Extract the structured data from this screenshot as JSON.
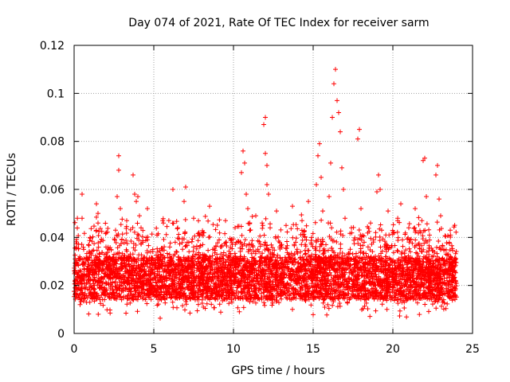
{
  "chart_data": {
    "type": "scatter",
    "title": "Day 074 of 2021, Rate Of TEC Index for receiver sarm",
    "xlabel": "GPS time / hours",
    "ylabel": "ROTI / TECUs",
    "xlim": [
      0,
      25
    ],
    "ylim": [
      0,
      0.12
    ],
    "xticks": [
      0,
      5,
      10,
      15,
      20,
      25
    ],
    "xtick_labels": [
      "0",
      "5",
      "10",
      "15",
      "20",
      "25"
    ],
    "yticks": [
      0,
      0.02,
      0.04,
      0.06,
      0.08,
      0.1,
      0.12
    ],
    "ytick_labels": [
      "0",
      "0.02",
      "0.04",
      "0.06",
      "0.08",
      "0.1",
      "0.12"
    ],
    "grid": true,
    "marker": "+",
    "color": "#ff0000",
    "series": [
      {
        "name": "ROTI",
        "points": [
          [
            0.1,
            0.022
          ],
          [
            0.3,
            0.031
          ],
          [
            0.4,
            0.018
          ],
          [
            0.5,
            0.058
          ],
          [
            0.5,
            0.048
          ],
          [
            0.6,
            0.035
          ],
          [
            0.8,
            0.027
          ],
          [
            1.0,
            0.04
          ],
          [
            1.1,
            0.019
          ],
          [
            1.3,
            0.025
          ],
          [
            1.4,
            0.054
          ],
          [
            1.5,
            0.05
          ],
          [
            1.5,
            0.046
          ],
          [
            1.6,
            0.033
          ],
          [
            1.8,
            0.021
          ],
          [
            2.0,
            0.036
          ],
          [
            2.2,
            0.028
          ],
          [
            2.4,
            0.017
          ],
          [
            2.6,
            0.043
          ],
          [
            2.7,
            0.057
          ],
          [
            2.8,
            0.074
          ],
          [
            2.8,
            0.068
          ],
          [
            2.9,
            0.052
          ],
          [
            3.0,
            0.039
          ],
          [
            3.1,
            0.024
          ],
          [
            3.3,
            0.047
          ],
          [
            3.5,
            0.031
          ],
          [
            3.7,
            0.066
          ],
          [
            3.8,
            0.058
          ],
          [
            3.9,
            0.055
          ],
          [
            4.0,
            0.057
          ],
          [
            4.1,
            0.049
          ],
          [
            4.2,
            0.044
          ],
          [
            4.3,
            0.038
          ],
          [
            4.5,
            0.026
          ],
          [
            4.6,
            0.052
          ],
          [
            4.8,
            0.034
          ],
          [
            5.0,
            0.019
          ],
          [
            5.2,
            0.041
          ],
          [
            5.4,
            0.029
          ],
          [
            5.6,
            0.046
          ],
          [
            5.8,
            0.022
          ],
          [
            6.0,
            0.036
          ],
          [
            6.2,
            0.06
          ],
          [
            6.3,
            0.027
          ],
          [
            6.5,
            0.044
          ],
          [
            6.7,
            0.031
          ],
          [
            6.9,
            0.055
          ],
          [
            7.0,
            0.061
          ],
          [
            7.1,
            0.038
          ],
          [
            7.3,
            0.024
          ],
          [
            7.5,
            0.048
          ],
          [
            7.7,
            0.033
          ],
          [
            7.9,
            0.02
          ],
          [
            8.1,
            0.042
          ],
          [
            8.3,
            0.028
          ],
          [
            8.5,
            0.053
          ],
          [
            8.7,
            0.035
          ],
          [
            8.9,
            0.017
          ],
          [
            9.1,
            0.039
          ],
          [
            9.3,
            0.026
          ],
          [
            9.5,
            0.047
          ],
          [
            9.7,
            0.032
          ],
          [
            9.9,
            0.021
          ],
          [
            10.1,
            0.044
          ],
          [
            10.3,
            0.03
          ],
          [
            10.5,
            0.067
          ],
          [
            10.6,
            0.076
          ],
          [
            10.7,
            0.071
          ],
          [
            10.8,
            0.058
          ],
          [
            10.9,
            0.052
          ],
          [
            11.0,
            0.037
          ],
          [
            11.2,
            0.025
          ],
          [
            11.4,
            0.049
          ],
          [
            11.6,
            0.034
          ],
          [
            11.8,
            0.046
          ],
          [
            11.9,
            0.087
          ],
          [
            12.0,
            0.09
          ],
          [
            12.0,
            0.075
          ],
          [
            12.1,
            0.07
          ],
          [
            12.1,
            0.062
          ],
          [
            12.2,
            0.058
          ],
          [
            12.3,
            0.044
          ],
          [
            12.5,
            0.029
          ],
          [
            12.7,
            0.051
          ],
          [
            12.9,
            0.036
          ],
          [
            13.1,
            0.023
          ],
          [
            13.3,
            0.045
          ],
          [
            13.5,
            0.031
          ],
          [
            13.7,
            0.053
          ],
          [
            13.9,
            0.038
          ],
          [
            14.1,
            0.022
          ],
          [
            14.3,
            0.047
          ],
          [
            14.5,
            0.033
          ],
          [
            14.7,
            0.055
          ],
          [
            14.9,
            0.04
          ],
          [
            15.0,
            0.026
          ],
          [
            15.2,
            0.062
          ],
          [
            15.3,
            0.074
          ],
          [
            15.4,
            0.079
          ],
          [
            15.5,
            0.065
          ],
          [
            15.6,
            0.051
          ],
          [
            15.8,
            0.037
          ],
          [
            16.0,
            0.057
          ],
          [
            16.1,
            0.071
          ],
          [
            16.2,
            0.09
          ],
          [
            16.3,
            0.104
          ],
          [
            16.4,
            0.11
          ],
          [
            16.5,
            0.097
          ],
          [
            16.6,
            0.092
          ],
          [
            16.7,
            0.084
          ],
          [
            16.8,
            0.069
          ],
          [
            16.9,
            0.06
          ],
          [
            17.0,
            0.048
          ],
          [
            17.2,
            0.033
          ],
          [
            17.4,
            0.044
          ],
          [
            17.6,
            0.029
          ],
          [
            17.8,
            0.081
          ],
          [
            17.9,
            0.085
          ],
          [
            18.0,
            0.052
          ],
          [
            18.2,
            0.038
          ],
          [
            18.4,
            0.024
          ],
          [
            18.6,
            0.046
          ],
          [
            18.8,
            0.031
          ],
          [
            19.0,
            0.059
          ],
          [
            19.1,
            0.066
          ],
          [
            19.2,
            0.06
          ],
          [
            19.3,
            0.043
          ],
          [
            19.5,
            0.028
          ],
          [
            19.7,
            0.051
          ],
          [
            19.9,
            0.036
          ],
          [
            20.1,
            0.022
          ],
          [
            20.3,
            0.047
          ],
          [
            20.5,
            0.054
          ],
          [
            20.6,
            0.039
          ],
          [
            20.8,
            0.026
          ],
          [
            21.0,
            0.044
          ],
          [
            21.2,
            0.031
          ],
          [
            21.4,
            0.052
          ],
          [
            21.6,
            0.037
          ],
          [
            21.8,
            0.023
          ],
          [
            21.9,
            0.072
          ],
          [
            22.0,
            0.073
          ],
          [
            22.1,
            0.057
          ],
          [
            22.3,
            0.041
          ],
          [
            22.5,
            0.028
          ],
          [
            22.7,
            0.066
          ],
          [
            22.8,
            0.07
          ],
          [
            22.9,
            0.056
          ],
          [
            23.0,
            0.049
          ],
          [
            23.2,
            0.035
          ],
          [
            23.4,
            0.022
          ],
          [
            23.6,
            0.043
          ],
          [
            23.8,
            0.03
          ],
          [
            23.9,
            0.018
          ]
        ]
      }
    ]
  }
}
